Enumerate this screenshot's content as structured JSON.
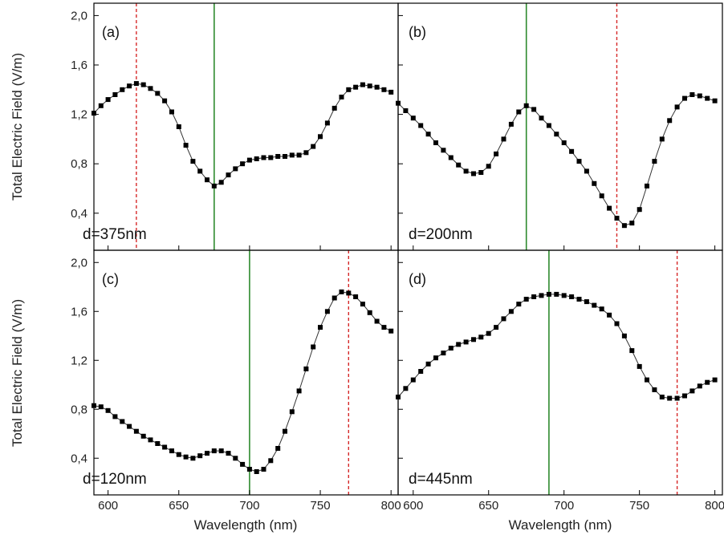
{
  "chart_data": [
    {
      "type": "line",
      "panel_label": "(a)",
      "annotation": "d=375nm",
      "xlim": [
        590,
        805
      ],
      "ylim": [
        0.1,
        2.1
      ],
      "vlines": [
        {
          "x": 620,
          "style": "dashed",
          "color": "#d62828"
        },
        {
          "x": 675,
          "style": "solid",
          "color": "#2e8b2e"
        }
      ],
      "x": [
        590,
        595,
        600,
        605,
        610,
        615,
        620,
        625,
        630,
        635,
        640,
        645,
        650,
        655,
        660,
        665,
        670,
        675,
        680,
        685,
        690,
        695,
        700,
        705,
        710,
        715,
        720,
        725,
        730,
        735,
        740,
        745,
        750,
        755,
        760,
        765,
        770,
        775,
        780,
        785,
        790,
        795,
        800
      ],
      "y": [
        1.21,
        1.27,
        1.32,
        1.36,
        1.4,
        1.43,
        1.45,
        1.44,
        1.41,
        1.37,
        1.31,
        1.22,
        1.1,
        0.95,
        0.82,
        0.74,
        0.67,
        0.62,
        0.65,
        0.71,
        0.76,
        0.8,
        0.83,
        0.84,
        0.85,
        0.85,
        0.86,
        0.86,
        0.87,
        0.87,
        0.89,
        0.94,
        1.02,
        1.13,
        1.25,
        1.34,
        1.4,
        1.42,
        1.44,
        1.43,
        1.42,
        1.4,
        1.38
      ]
    },
    {
      "type": "line",
      "panel_label": "(b)",
      "annotation": "d=200nm",
      "xlim": [
        590,
        805
      ],
      "ylim": [
        0.1,
        2.1
      ],
      "vlines": [
        {
          "x": 675,
          "style": "solid",
          "color": "#2e8b2e"
        },
        {
          "x": 735,
          "style": "dashed",
          "color": "#d62828"
        }
      ],
      "x": [
        590,
        595,
        600,
        605,
        610,
        615,
        620,
        625,
        630,
        635,
        640,
        645,
        650,
        655,
        660,
        665,
        670,
        675,
        680,
        685,
        690,
        695,
        700,
        705,
        710,
        715,
        720,
        725,
        730,
        735,
        740,
        745,
        750,
        755,
        760,
        765,
        770,
        775,
        780,
        785,
        790,
        795,
        800
      ],
      "y": [
        1.29,
        1.23,
        1.17,
        1.11,
        1.04,
        0.97,
        0.91,
        0.85,
        0.79,
        0.74,
        0.72,
        0.73,
        0.78,
        0.88,
        1.0,
        1.12,
        1.22,
        1.27,
        1.24,
        1.17,
        1.11,
        1.04,
        0.97,
        0.9,
        0.82,
        0.74,
        0.64,
        0.54,
        0.44,
        0.36,
        0.3,
        0.32,
        0.43,
        0.62,
        0.82,
        1.0,
        1.15,
        1.26,
        1.33,
        1.36,
        1.35,
        1.33,
        1.31
      ]
    },
    {
      "type": "line",
      "panel_label": "(c)",
      "annotation": "d=120nm",
      "xlim": [
        590,
        805
      ],
      "ylim": [
        0.1,
        2.1
      ],
      "vlines": [
        {
          "x": 700,
          "style": "solid",
          "color": "#2e8b2e"
        },
        {
          "x": 770,
          "style": "dashed",
          "color": "#d62828"
        }
      ],
      "x": [
        590,
        595,
        600,
        605,
        610,
        615,
        620,
        625,
        630,
        635,
        640,
        645,
        650,
        655,
        660,
        665,
        670,
        675,
        680,
        685,
        690,
        695,
        700,
        705,
        710,
        715,
        720,
        725,
        730,
        735,
        740,
        745,
        750,
        755,
        760,
        765,
        770,
        775,
        780,
        785,
        790,
        795,
        800
      ],
      "y": [
        0.83,
        0.82,
        0.79,
        0.74,
        0.7,
        0.66,
        0.62,
        0.58,
        0.55,
        0.52,
        0.49,
        0.46,
        0.43,
        0.41,
        0.4,
        0.42,
        0.44,
        0.46,
        0.46,
        0.44,
        0.4,
        0.35,
        0.31,
        0.29,
        0.31,
        0.38,
        0.48,
        0.62,
        0.78,
        0.95,
        1.13,
        1.31,
        1.47,
        1.6,
        1.71,
        1.76,
        1.75,
        1.72,
        1.66,
        1.59,
        1.52,
        1.47,
        1.44
      ]
    },
    {
      "type": "line",
      "panel_label": "(d)",
      "annotation": "d=445nm",
      "xlim": [
        590,
        805
      ],
      "ylim": [
        0.1,
        2.1
      ],
      "vlines": [
        {
          "x": 690,
          "style": "solid",
          "color": "#2e8b2e"
        },
        {
          "x": 775,
          "style": "dashed",
          "color": "#d62828"
        }
      ],
      "x": [
        590,
        595,
        600,
        605,
        610,
        615,
        620,
        625,
        630,
        635,
        640,
        645,
        650,
        655,
        660,
        665,
        670,
        675,
        680,
        685,
        690,
        695,
        700,
        705,
        710,
        715,
        720,
        725,
        730,
        735,
        740,
        745,
        750,
        755,
        760,
        765,
        770,
        775,
        780,
        785,
        790,
        795,
        800
      ],
      "y": [
        0.9,
        0.97,
        1.04,
        1.11,
        1.17,
        1.22,
        1.26,
        1.3,
        1.33,
        1.35,
        1.37,
        1.39,
        1.42,
        1.47,
        1.54,
        1.6,
        1.66,
        1.7,
        1.72,
        1.73,
        1.74,
        1.74,
        1.73,
        1.72,
        1.7,
        1.68,
        1.65,
        1.62,
        1.57,
        1.5,
        1.4,
        1.28,
        1.15,
        1.04,
        0.96,
        0.9,
        0.89,
        0.89,
        0.91,
        0.95,
        0.99,
        1.02,
        1.04
      ]
    }
  ],
  "axes": {
    "ylabel": "Total Electric Field (V/m)",
    "xlabel": "Wavelength (nm)",
    "yticks": [
      0.4,
      0.8,
      1.2,
      1.6,
      2.0
    ],
    "ytick_labels": [
      "0,4",
      "0,8",
      "1,2",
      "1,6",
      "2,0"
    ],
    "xticks": [
      600,
      650,
      700,
      750,
      800
    ],
    "xtick_labels": [
      "600",
      "650",
      "700",
      "750",
      "800"
    ]
  }
}
